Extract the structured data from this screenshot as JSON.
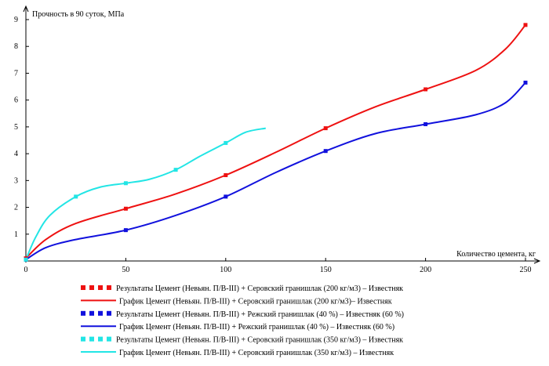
{
  "chart_data": {
    "type": "line",
    "title": "",
    "ylabel": "Прочность в 90 суток, МПа",
    "xlabel": "Количество цемента, кг",
    "xlim": [
      0,
      250
    ],
    "ylim": [
      0,
      9
    ],
    "x_ticks": [
      0,
      50,
      100,
      150,
      200,
      250
    ],
    "y_ticks": [
      1,
      2,
      3,
      4,
      5,
      6,
      7,
      8,
      9
    ],
    "grid": false,
    "legend_position": "bottom",
    "series": [
      {
        "name": "Результаты Цемент (Невьян. П/В-III) + Серовский гранишлак (200 кг/м3) – Известняк",
        "kind": "points",
        "color": "#ee1111",
        "x": [
          0,
          50,
          100,
          150,
          200,
          250
        ],
        "y": [
          0.1,
          1.95,
          3.2,
          4.95,
          6.4,
          8.8
        ]
      },
      {
        "name": "График Цемент (Невьян. П/В-III) + Серовский гранишлак (200 кг/м3)– Известняк",
        "kind": "curve",
        "color": "#ee1111",
        "x": [
          0,
          10,
          25,
          50,
          75,
          100,
          125,
          150,
          175,
          200,
          225,
          240,
          250
        ],
        "y": [
          0.1,
          0.8,
          1.4,
          1.95,
          2.5,
          3.2,
          4.05,
          4.95,
          5.75,
          6.4,
          7.1,
          7.9,
          8.8
        ]
      },
      {
        "name": "Результаты Цемент (Невьян. П/В-III) + Режский гранишлак (40 %) – Известняк (60 %)",
        "kind": "points",
        "color": "#1111dd",
        "x": [
          0,
          50,
          100,
          150,
          200,
          250
        ],
        "y": [
          0.05,
          1.15,
          2.4,
          4.1,
          5.1,
          6.65
        ]
      },
      {
        "name": "График Цемент (Невьян. П/В-III) + Режский гранишлак (40 %) – Известняк (60 %)",
        "kind": "curve",
        "color": "#1111dd",
        "x": [
          0,
          10,
          25,
          50,
          75,
          100,
          125,
          150,
          175,
          200,
          225,
          240,
          250
        ],
        "y": [
          0.05,
          0.5,
          0.8,
          1.15,
          1.7,
          2.4,
          3.3,
          4.1,
          4.75,
          5.1,
          5.45,
          5.9,
          6.65
        ]
      },
      {
        "name": "Результаты Цемент (Невьян. П/В-III) + Серовский гранишлак (350 кг/м3) – Известняк",
        "kind": "points",
        "color": "#22e5e5",
        "x": [
          0,
          25,
          50,
          75,
          100
        ],
        "y": [
          0.05,
          2.4,
          2.9,
          3.4,
          4.4
        ]
      },
      {
        "name": "График Цемент (Невьян. П/В-III) + Серовский гранишлак (350 кг/м3) – Известняк",
        "kind": "curve",
        "color": "#22e5e5",
        "x": [
          0,
          5,
          12,
          25,
          37,
          50,
          62,
          75,
          87,
          100,
          110,
          120
        ],
        "y": [
          0.05,
          0.9,
          1.7,
          2.4,
          2.75,
          2.9,
          3.05,
          3.4,
          3.9,
          4.4,
          4.8,
          4.95
        ]
      }
    ]
  }
}
